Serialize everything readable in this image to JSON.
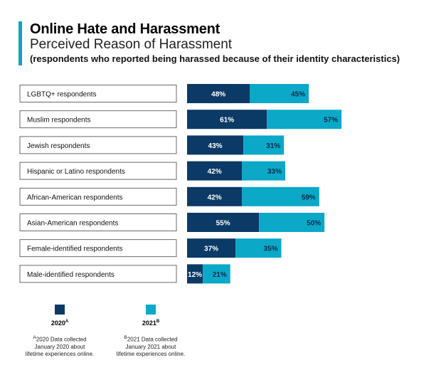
{
  "header": {
    "title": "Online Hate and Harassment",
    "subtitle": "Perceived Reason of Harassment",
    "note": "(respondents who reported being harassed because of their identity characteristics)"
  },
  "chart_data": {
    "type": "bar",
    "stacked": true,
    "orientation": "horizontal",
    "categories": [
      "LGBTQ+ respondents",
      "Muslim respondents",
      "Jewish respondents",
      "Hispanic or Latino respondents",
      "African-American respondents",
      "Asian-American respondents",
      "Female-identified respondents",
      "Male-identified respondents"
    ],
    "series": [
      {
        "name": "2020",
        "color": "#0b3a66",
        "values": [
          48,
          61,
          43,
          42,
          42,
          55,
          37,
          12
        ]
      },
      {
        "name": "2021",
        "color": "#0ba8c8",
        "values": [
          45,
          57,
          31,
          33,
          59,
          50,
          35,
          21
        ]
      }
    ],
    "labels_2020": [
      "48%",
      "61%",
      "43%",
      "42%",
      "42%",
      "55%",
      "37%",
      "12%"
    ],
    "labels_2021": [
      "45%",
      "57%",
      "31%",
      "33%",
      "59%",
      "50%",
      "35%",
      "21%"
    ],
    "xlim": [
      0,
      120
    ],
    "grid": false
  },
  "legend": {
    "items": [
      {
        "label": "2020",
        "sup": "A",
        "color": "#0b3a66"
      },
      {
        "label": "2021",
        "sup": "B",
        "color": "#0ba8c8"
      }
    ],
    "footnotes": [
      {
        "sup": "A",
        "lines": [
          "2020 Data collected",
          "January 2020 about",
          "lifetime experiences online."
        ]
      },
      {
        "sup": "B",
        "lines": [
          "2021 Data collected",
          "January 2021 about",
          "lifetime experiences online."
        ]
      }
    ]
  }
}
